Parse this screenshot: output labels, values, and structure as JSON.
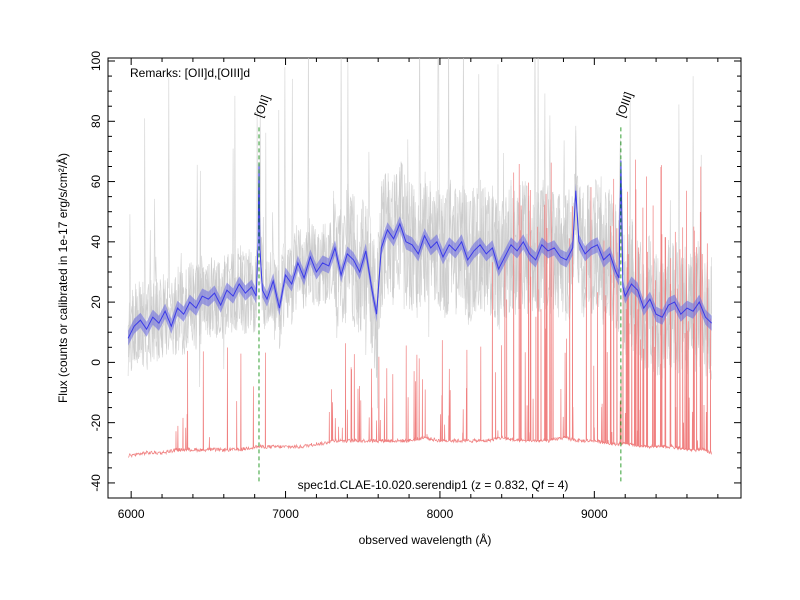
{
  "chart_data": {
    "type": "line",
    "xlabel": "observed wavelength (Å)",
    "ylabel": "Flux (counts or calibrated in 1e-17 erg/s/cm²/Å)",
    "xlim": [
      5850,
      9950
    ],
    "ylim": [
      -45,
      101
    ],
    "x_ticks": [
      6000,
      7000,
      8000,
      9000
    ],
    "y_ticks": [
      -40,
      -20,
      0,
      20,
      40,
      60,
      80,
      100
    ],
    "remarks": "Remarks: [OII]d,[OIII]d",
    "caption": "spec1d.CLAE-10.020.serendip1 (z = 0.832, Qf = 4)",
    "line_markers": [
      {
        "label": "[OII]",
        "x": 6828
      },
      {
        "label": "[OIII]",
        "x": 9172
      }
    ],
    "series": [
      {
        "role": "smoothed",
        "color": "#3a3ae8",
        "x": [
          5980,
          6020,
          6060,
          6100,
          6140,
          6180,
          6220,
          6260,
          6300,
          6340,
          6380,
          6420,
          6460,
          6500,
          6540,
          6580,
          6620,
          6660,
          6700,
          6740,
          6780,
          6810,
          6822,
          6828,
          6834,
          6850,
          6880,
          6920,
          6960,
          7000,
          7040,
          7080,
          7120,
          7160,
          7200,
          7240,
          7280,
          7320,
          7360,
          7400,
          7440,
          7480,
          7520,
          7560,
          7590,
          7620,
          7660,
          7700,
          7740,
          7780,
          7820,
          7860,
          7900,
          7940,
          7980,
          8020,
          8060,
          8100,
          8140,
          8180,
          8220,
          8260,
          8300,
          8340,
          8380,
          8420,
          8460,
          8500,
          8540,
          8580,
          8620,
          8660,
          8700,
          8740,
          8780,
          8820,
          8860,
          8880,
          8900,
          8940,
          8980,
          9020,
          9060,
          9100,
          9140,
          9160,
          9172,
          9185,
          9200,
          9240,
          9280,
          9320,
          9360,
          9400,
          9440,
          9480,
          9520,
          9560,
          9600,
          9640,
          9680,
          9720,
          9760
        ],
        "y": [
          8,
          12,
          14,
          11,
          15,
          13,
          17,
          12,
          18,
          16,
          20,
          18,
          22,
          21,
          23,
          19,
          24,
          22,
          26,
          23,
          25,
          22,
          40,
          66,
          38,
          24,
          21,
          27,
          18,
          29,
          26,
          33,
          28,
          35,
          30,
          33,
          32,
          38,
          29,
          36,
          34,
          30,
          37,
          24,
          16,
          38,
          44,
          41,
          46,
          40,
          39,
          36,
          42,
          38,
          40,
          35,
          39,
          37,
          40,
          34,
          37,
          39,
          36,
          38,
          31,
          35,
          39,
          37,
          40,
          36,
          34,
          39,
          37,
          38,
          35,
          34,
          38,
          57,
          40,
          36,
          38,
          39,
          34,
          36,
          30,
          28,
          67,
          25,
          22,
          26,
          24,
          18,
          21,
          16,
          15,
          19,
          20,
          16,
          18,
          17,
          20,
          15,
          13
        ]
      },
      {
        "role": "sky",
        "color": "#f08080",
        "x": [
          5980,
          6100,
          6200,
          6300,
          6400,
          6500,
          6600,
          6700,
          6800,
          6900,
          7000,
          7100,
          7200,
          7240,
          7300,
          7400,
          7500,
          7600,
          7700,
          7800,
          7900,
          8000,
          8100,
          8200,
          8300,
          8400,
          8500,
          8600,
          8700,
          8800,
          8900,
          9000,
          9100,
          9200,
          9300,
          9400,
          9500,
          9600,
          9700,
          9760
        ],
        "y": [
          -31,
          -30,
          -30,
          -29,
          -29,
          -29,
          -29,
          -29,
          -28,
          -28,
          -28,
          -28,
          -27,
          -27,
          -26,
          -26,
          -26,
          -26,
          -26,
          -26,
          -25,
          -26,
          -26,
          -26,
          -26,
          -25,
          -26,
          -26,
          -26,
          -25,
          -26,
          -26,
          -27,
          -27,
          -28,
          -28,
          -28,
          -29,
          -29,
          -30
        ]
      }
    ]
  }
}
